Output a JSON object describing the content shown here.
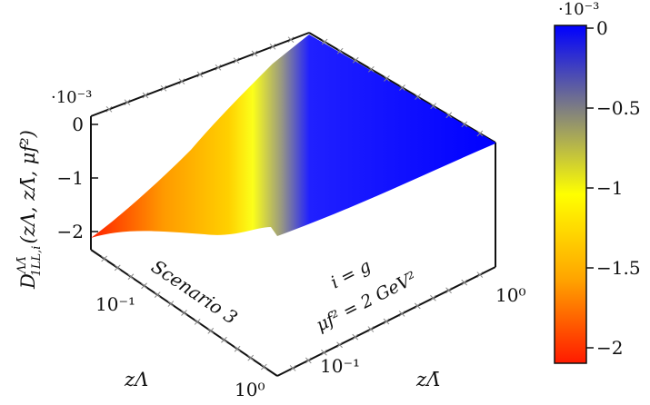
{
  "chart_data": {
    "type": "surface3d",
    "title": "",
    "zlabel": "D^{ΛΛ̄}_{1LL,i}(z_Λ, z_Λ̄, μ_f²)",
    "zlabel_main": "D",
    "zlabel_sup": "ΛΛ̄",
    "zlabel_sub": "1LL,i",
    "zlabel_args": "(zΛ, zΛ̄, μf²)",
    "xlabel": "zΛ",
    "ylabel": "zΛ̄",
    "z_scale": "·10⁻³",
    "colorbar_scale": "·10⁻³",
    "z_ticks": [
      "0",
      "−1",
      "−2"
    ],
    "z_tick_values": [
      0,
      -1,
      -2
    ],
    "x_ticks": [
      "10⁻¹",
      "10⁰"
    ],
    "y_ticks": [
      "10⁻¹",
      "10⁰"
    ],
    "axis_scale": "log",
    "x_range": [
      0.01,
      1
    ],
    "y_range": [
      0.01,
      1
    ],
    "z_range": [
      -2.2,
      0
    ],
    "colorbar_ticks": [
      "0",
      "−0.5",
      "−1",
      "−1.5",
      "−2"
    ],
    "colorbar_tick_values": [
      0,
      -0.5,
      -1,
      -1.5,
      -2
    ],
    "colormap": [
      "#ff1a00",
      "#ffa500",
      "#ffff00",
      "#808080",
      "#0000ff"
    ],
    "annotations": {
      "scenario": "Scenario 3",
      "parton": "i = g",
      "scale": "μf² = 2 GeV²"
    },
    "surface_profile": {
      "description_values_along_zLambda_at_small_zLambdabar": [
        {
          "zLambda": 0.01,
          "value": -2.1
        },
        {
          "zLambda": 0.03,
          "value": -1.6
        },
        {
          "zLambda": 0.1,
          "value": -1.1
        },
        {
          "zLambda": 0.3,
          "value": -0.5
        },
        {
          "zLambda": 1.0,
          "value": 0.0
        }
      ]
    }
  }
}
